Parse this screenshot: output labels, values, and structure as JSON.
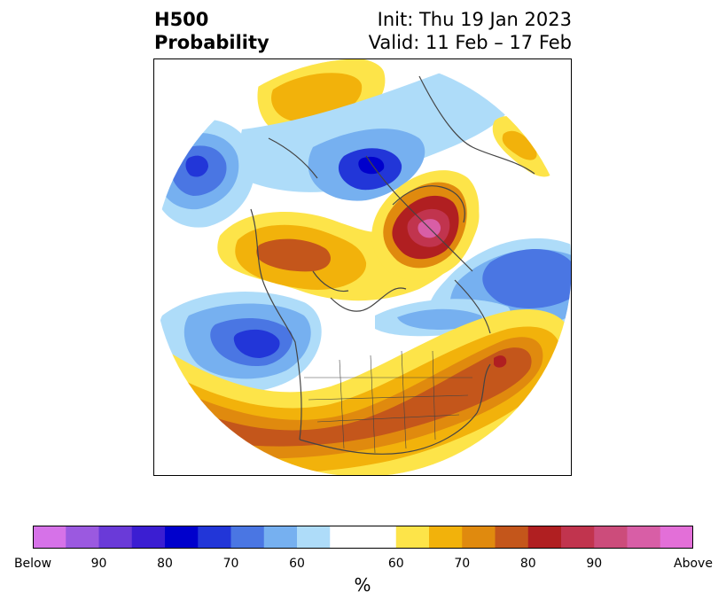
{
  "title": {
    "left_line1": "H500",
    "left_line2": "Probability",
    "right_line1": "Init: Thu 19 Jan 2023",
    "right_line2": "Valid: 11 Feb – 17 Feb"
  },
  "map": {
    "projection": "polar-stereographic-circle",
    "border_color": "#444444"
  },
  "colorbar": {
    "unit_label": "%",
    "colors": [
      "#d672e8",
      "#9b59e0",
      "#6a3ad8",
      "#3b1ed2",
      "#0000cc",
      "#2236d8",
      "#4a76e3",
      "#76b0f0",
      "#aedcf9",
      "#ffffff",
      "#fde449",
      "#f2b20b",
      "#e08a0e",
      "#c4561b",
      "#b01f21",
      "#c1344e",
      "#cc4c7b",
      "#d85ea6",
      "#e36fd8"
    ],
    "widths": [
      1,
      1,
      1,
      1,
      1,
      1,
      1,
      1,
      1,
      2,
      1,
      1,
      1,
      1,
      1,
      1,
      1,
      1,
      1
    ],
    "tick_labels": [
      "Below",
      "90",
      "80",
      "70",
      "60",
      "60",
      "70",
      "80",
      "90",
      "Above"
    ],
    "tick_edges": [
      0,
      2,
      4,
      6,
      8,
      11,
      13,
      15,
      17,
      20
    ]
  },
  "chart_data": {
    "type": "heatmap",
    "title": "H500 Probability",
    "subtitle": "Init: Thu 19 Jan 2023 / Valid: 11 Feb – 17 Feb",
    "colorbar_unit": "%",
    "below_scale": [
      90,
      80,
      70,
      60
    ],
    "above_scale": [
      60,
      70,
      80,
      90
    ],
    "features": [
      {
        "type": "above",
        "level": 90,
        "color": "#cc4c7b"
      },
      {
        "type": "above",
        "level": 60,
        "color": "#fde449"
      },
      {
        "type": "below",
        "level": 80,
        "color": "#2236d8"
      },
      {
        "type": "below",
        "level": 60,
        "color": "#aedcf9"
      }
    ]
  }
}
